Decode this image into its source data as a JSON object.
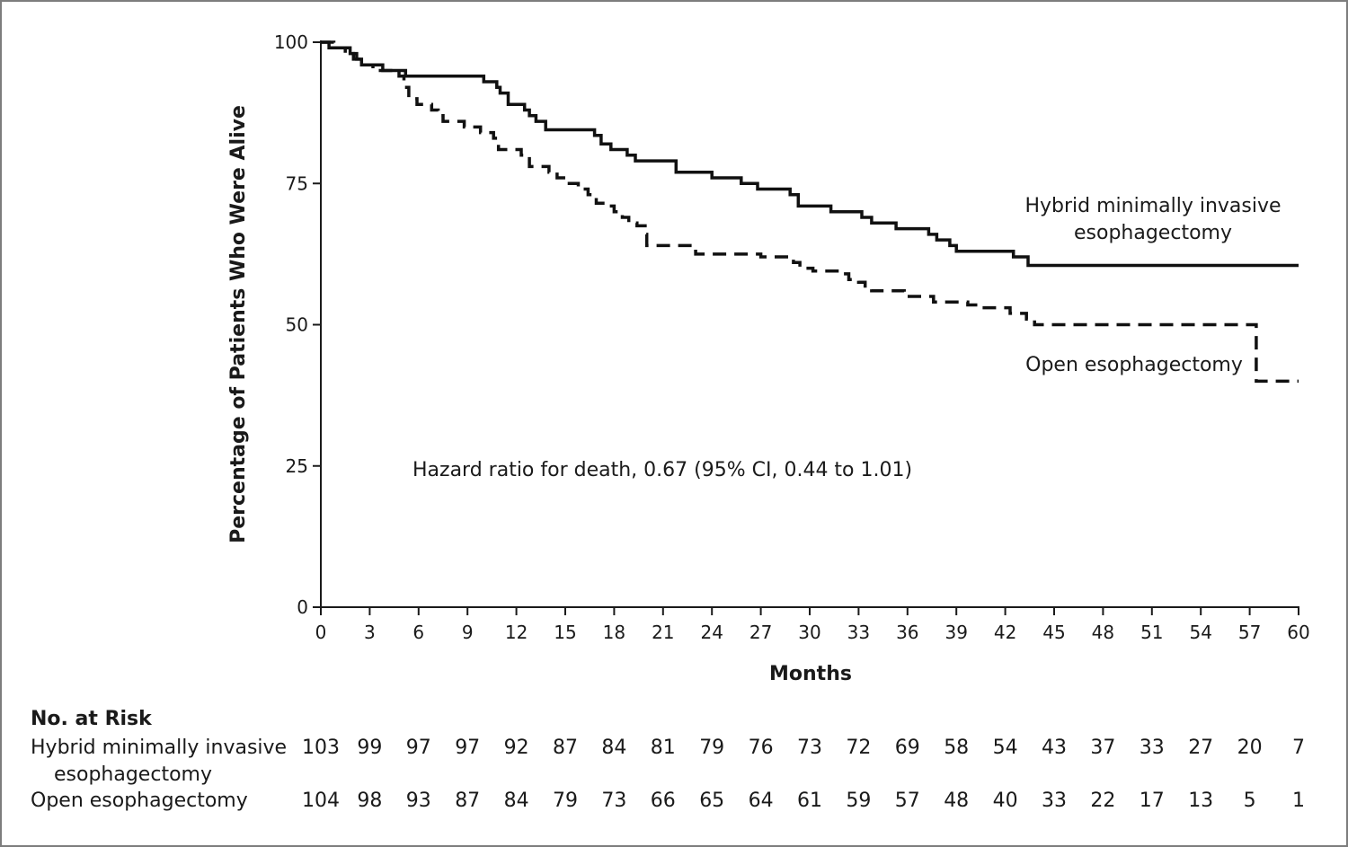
{
  "chart_data": {
    "type": "line",
    "subtype": "kaplan-meier step curve",
    "ylabel": "Percentage of Patients Who Were Alive",
    "xlabel": "Months",
    "xlim": [
      0,
      60
    ],
    "ylim": [
      0,
      100
    ],
    "x_ticks": [
      0,
      3,
      6,
      9,
      12,
      15,
      18,
      21,
      24,
      27,
      30,
      33,
      36,
      39,
      42,
      45,
      48,
      51,
      54,
      57,
      60
    ],
    "y_ticks": [
      0,
      25,
      50,
      75,
      100
    ],
    "grid": false,
    "series": [
      {
        "name": "Hybrid minimally invasive esophagectomy",
        "label_lines": [
          "Hybrid minimally invasive",
          "esophagectomy"
        ],
        "line_style": "solid",
        "color": "#111111",
        "points": [
          [
            0,
            100
          ],
          [
            0.5,
            99
          ],
          [
            1.8,
            98
          ],
          [
            2.2,
            97
          ],
          [
            2.5,
            96
          ],
          [
            3.8,
            95
          ],
          [
            5.2,
            94
          ],
          [
            10,
            93
          ],
          [
            10.8,
            92
          ],
          [
            11,
            91
          ],
          [
            11.5,
            89
          ],
          [
            12.5,
            88
          ],
          [
            12.8,
            87
          ],
          [
            13.2,
            86
          ],
          [
            13.8,
            84.5
          ],
          [
            16.8,
            83.5
          ],
          [
            17.2,
            82
          ],
          [
            17.8,
            81
          ],
          [
            18.8,
            80
          ],
          [
            19.3,
            79
          ],
          [
            21.8,
            77
          ],
          [
            24,
            76
          ],
          [
            25.8,
            75
          ],
          [
            26.8,
            74
          ],
          [
            28.8,
            73
          ],
          [
            29.3,
            71
          ],
          [
            31.3,
            70
          ],
          [
            33.2,
            69
          ],
          [
            33.8,
            68
          ],
          [
            35.3,
            67
          ],
          [
            37.3,
            66
          ],
          [
            37.8,
            65
          ],
          [
            38.6,
            64
          ],
          [
            39,
            63
          ],
          [
            42.5,
            62
          ],
          [
            43.4,
            60.5
          ],
          [
            60,
            60.5
          ]
        ]
      },
      {
        "name": "Open esophagectomy",
        "label_lines": [
          "Open esophagectomy"
        ],
        "line_style": "dashed",
        "color": "#111111",
        "points": [
          [
            0,
            100
          ],
          [
            0.8,
            99
          ],
          [
            1.5,
            98
          ],
          [
            2,
            97
          ],
          [
            2.6,
            96
          ],
          [
            3.2,
            95
          ],
          [
            4.8,
            94
          ],
          [
            5.1,
            92
          ],
          [
            5.4,
            90
          ],
          [
            5.9,
            89
          ],
          [
            6.8,
            88
          ],
          [
            7.2,
            87
          ],
          [
            7.5,
            86
          ],
          [
            8.8,
            85
          ],
          [
            9.8,
            84
          ],
          [
            10.6,
            83
          ],
          [
            10.9,
            81
          ],
          [
            12.3,
            80
          ],
          [
            12.8,
            78
          ],
          [
            14,
            77
          ],
          [
            14.5,
            76
          ],
          [
            14.9,
            75
          ],
          [
            15.8,
            74
          ],
          [
            16.4,
            73
          ],
          [
            16.9,
            71.5
          ],
          [
            17.6,
            71
          ],
          [
            18,
            70
          ],
          [
            18.5,
            69
          ],
          [
            18.9,
            68
          ],
          [
            19.4,
            67.5
          ],
          [
            19.9,
            66
          ],
          [
            20,
            64
          ],
          [
            22.8,
            63
          ],
          [
            23,
            62.5
          ],
          [
            27,
            62
          ],
          [
            29,
            61
          ],
          [
            29.4,
            60
          ],
          [
            30.2,
            59.5
          ],
          [
            31.8,
            59
          ],
          [
            32.4,
            58
          ],
          [
            33,
            57.5
          ],
          [
            33.4,
            56.5
          ],
          [
            33.8,
            56
          ],
          [
            35.8,
            55
          ],
          [
            37.6,
            54
          ],
          [
            39.7,
            53.5
          ],
          [
            40.6,
            53
          ],
          [
            42.3,
            52
          ],
          [
            43.3,
            51
          ],
          [
            43.8,
            50
          ],
          [
            57.4,
            50
          ],
          [
            57.4,
            40
          ],
          [
            60,
            40
          ]
        ]
      }
    ],
    "annotations": [
      {
        "text": "Hazard ratio for death, 0.67 (95% CI, 0.44 to 1.01)"
      }
    ],
    "risk_table": {
      "title": "No. at Risk",
      "rows": [
        {
          "label_lines": [
            "Hybrid minimally invasive",
            "esophagectomy"
          ],
          "values": [
            103,
            99,
            97,
            97,
            92,
            87,
            84,
            81,
            79,
            76,
            73,
            72,
            69,
            58,
            54,
            43,
            37,
            33,
            27,
            20,
            7
          ]
        },
        {
          "label_lines": [
            "Open esophagectomy"
          ],
          "values": [
            104,
            98,
            93,
            87,
            84,
            79,
            73,
            66,
            65,
            64,
            61,
            59,
            57,
            48,
            40,
            33,
            22,
            17,
            13,
            5,
            1
          ]
        }
      ]
    }
  }
}
